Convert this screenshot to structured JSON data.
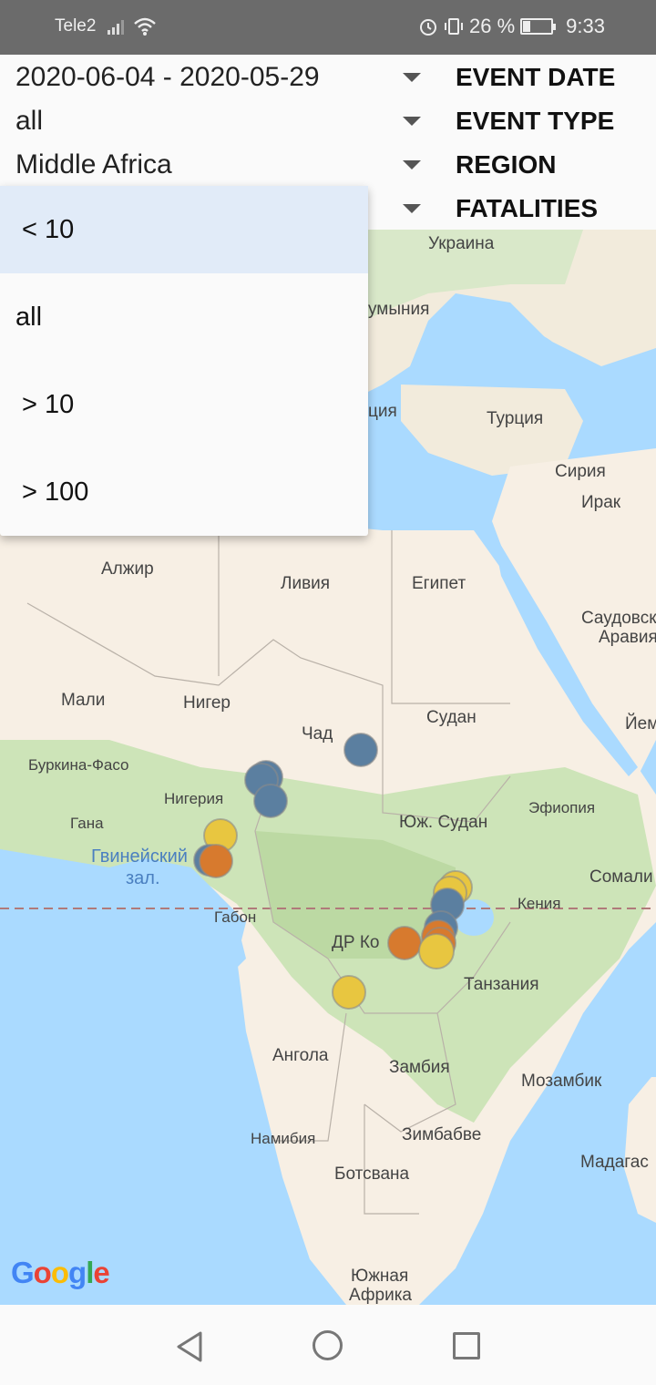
{
  "status_bar": {
    "carrier": "Tele2",
    "battery": "26 %",
    "time": "9:33"
  },
  "filters": {
    "event_date": {
      "value": "2020-06-04 - 2020-05-29",
      "label": "EVENT DATE"
    },
    "event_type": {
      "value": "all",
      "label": "EVENT TYPE"
    },
    "region": {
      "value": "Middle Africa",
      "label": "REGION"
    },
    "fatalities": {
      "label": "FATALITIES"
    }
  },
  "dropdown": {
    "options": [
      "< 10",
      "all",
      "> 10",
      "> 100"
    ],
    "selected": "< 10"
  },
  "map": {
    "labels": {
      "ukraine": "Украина",
      "romania": "умыния",
      "turkey": "Турция",
      "greece": "ция",
      "syria": "Сирия",
      "iraq": "Ирак",
      "algeria": "Алжир",
      "libya": "Ливия",
      "egypt": "Египет",
      "saudi": "Саудовск",
      "arabia": "Аравия",
      "mali": "Мали",
      "niger": "Нигер",
      "chad": "Чад",
      "sudan": "Судан",
      "yemen": "Йем",
      "burkina": "Буркина-Фасо",
      "nigeria": "Нигерия",
      "ethiopia": "Эфиопия",
      "ghana": "Гана",
      "south_sudan": "Юж. Судан",
      "gulf1": "Гвинейский",
      "gulf2": "зал.",
      "somalia": "Сомали",
      "gabon": "Габон",
      "kenya": "Кения",
      "drc": "ДР Ко",
      "tanzania": "Танзания",
      "angola": "Ангола",
      "zambia": "Замбия",
      "mozambique": "Мозамбик",
      "namibia": "Намибия",
      "zimbabwe": "Зимбабве",
      "madagascar": "Мадагас",
      "botswana": "Ботсвана",
      "south_africa1": "Южная",
      "south_africa2": "Африка"
    },
    "marker_colors": {
      "blue": "#5b7fa0",
      "orange": "#d77a2e",
      "yellow": "#e8c640"
    },
    "attribution": "Google"
  },
  "colors": {
    "status_bar": "#6b6b6b",
    "selected_option": "#e1ebf8",
    "water": "#aadaff",
    "land": "#f7efe4",
    "vegetation": "#cde4b8"
  }
}
